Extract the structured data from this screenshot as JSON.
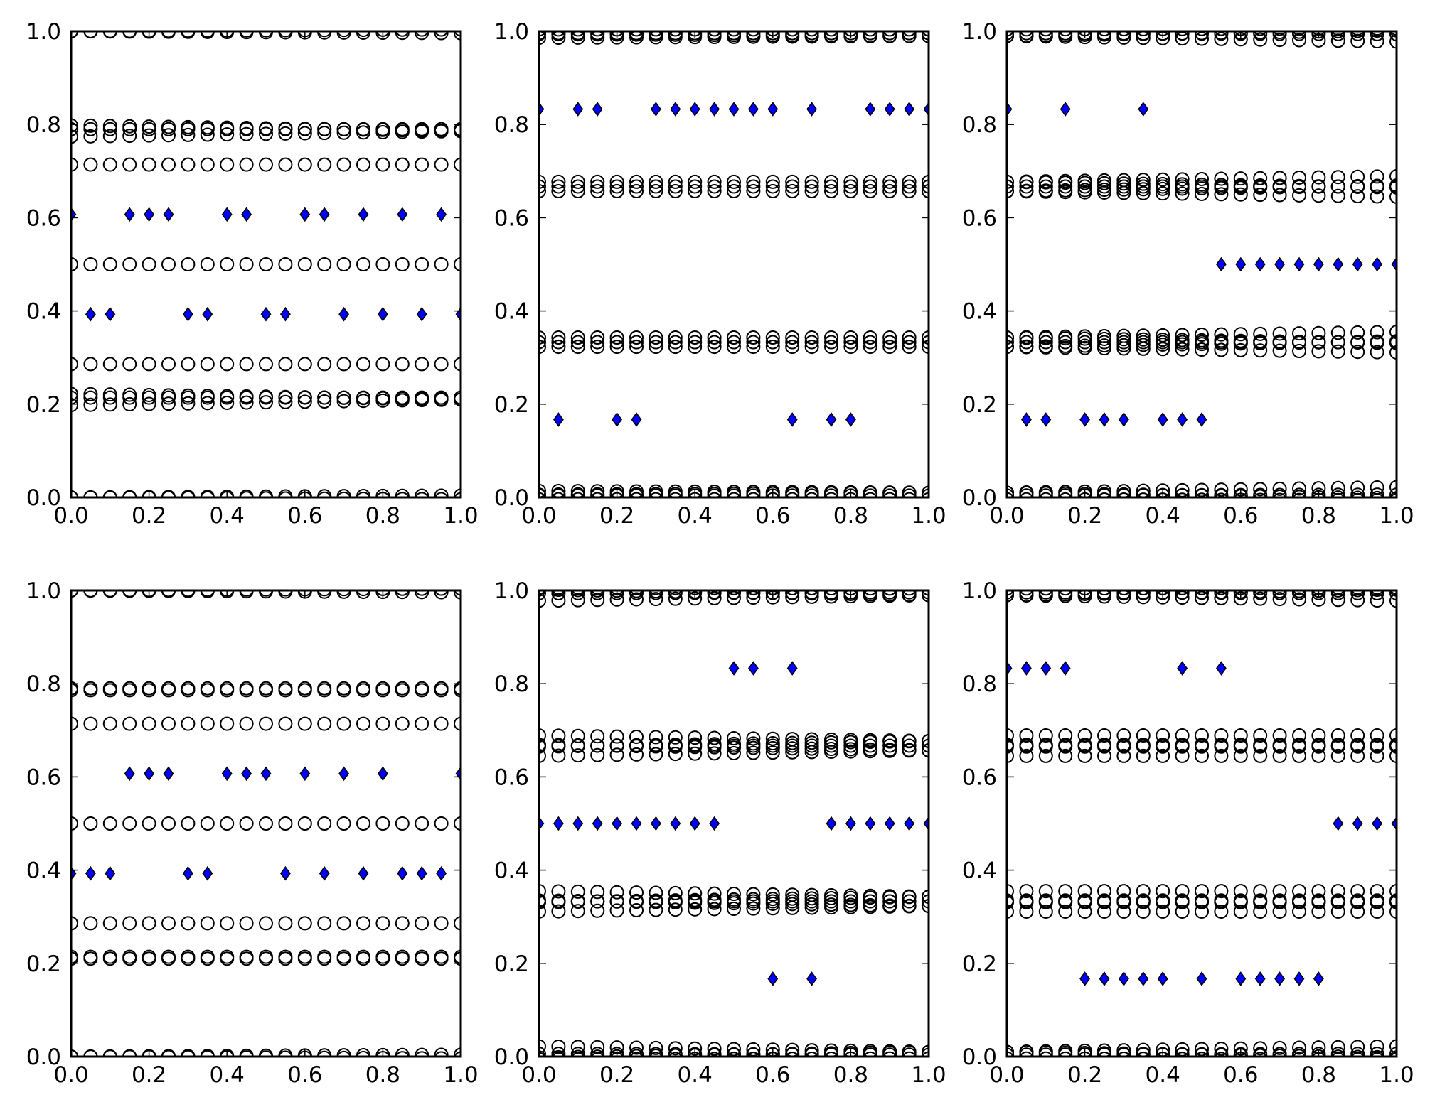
{
  "chart_data": [
    {
      "type": "scatter",
      "panel": 1,
      "xlim": [
        0,
        1
      ],
      "ylim": [
        0,
        1
      ],
      "xticks": [
        "0.0",
        "0.2",
        "0.4",
        "0.6",
        "0.8",
        "1.0"
      ],
      "yticks": [
        "0.0",
        "0.2",
        "0.4",
        "0.6",
        "0.8",
        "1.0"
      ],
      "series": [
        {
          "marker": "diamond",
          "color": "#0000ff",
          "points": [
            [
              0,
              0.607
            ],
            [
              0.05,
              0.393
            ],
            [
              0.1,
              0.393
            ],
            [
              0.15,
              0.607
            ],
            [
              0.2,
              0.607
            ],
            [
              0.25,
              0.607
            ],
            [
              0.3,
              0.393
            ],
            [
              0.35,
              0.393
            ],
            [
              0.4,
              0.607
            ],
            [
              0.45,
              0.607
            ],
            [
              0.5,
              0.393
            ],
            [
              0.55,
              0.393
            ],
            [
              0.6,
              0.607
            ],
            [
              0.65,
              0.607
            ],
            [
              0.7,
              0.393
            ],
            [
              0.75,
              0.607
            ],
            [
              0.8,
              0.393
            ],
            [
              0.85,
              0.607
            ],
            [
              0.9,
              0.393
            ],
            [
              0.95,
              0.607
            ],
            [
              1,
              0.393
            ]
          ]
        },
        {
          "marker": "open-circle",
          "color": "#000000",
          "rows": [
            {
              "y": 0.0,
              "spread_start": 0.0,
              "spread_end": 0.004
            },
            {
              "y": 0.21,
              "spread_start": 0.012,
              "spread_end": 0.0
            },
            {
              "y": 0.214,
              "spread_start": 0.0,
              "spread_end": 0.0
            },
            {
              "y": 0.286,
              "spread_start": 0.0,
              "spread_end": 0.0
            },
            {
              "y": 0.5,
              "spread_start": 0.0,
              "spread_end": 0.0
            },
            {
              "y": 0.714,
              "spread_start": 0.0,
              "spread_end": 0.0
            },
            {
              "y": 0.786,
              "spread_start": 0.012,
              "spread_end": 0.0
            },
            {
              "y": 0.79,
              "spread_start": 0.0,
              "spread_end": 0.0
            },
            {
              "y": 1.0,
              "spread_start": 0.0,
              "spread_end": 0.004
            }
          ]
        }
      ]
    },
    {
      "type": "scatter",
      "panel": 2,
      "xlim": [
        0,
        1
      ],
      "ylim": [
        0,
        1
      ],
      "xticks": [
        "0.0",
        "0.2",
        "0.4",
        "0.6",
        "0.8",
        "1.0"
      ],
      "yticks": [
        "0.0",
        "0.2",
        "0.4",
        "0.6",
        "0.8",
        "1.0"
      ],
      "series": [
        {
          "marker": "diamond",
          "color": "#0000ff",
          "points": [
            [
              0,
              0.833
            ],
            [
              0.05,
              0.167
            ],
            [
              0.1,
              0.833
            ],
            [
              0.15,
              0.833
            ],
            [
              0.2,
              0.167
            ],
            [
              0.25,
              0.167
            ],
            [
              0.3,
              0.833
            ],
            [
              0.35,
              0.833
            ],
            [
              0.4,
              0.833
            ],
            [
              0.45,
              0.833
            ],
            [
              0.5,
              0.833
            ],
            [
              0.55,
              0.833
            ],
            [
              0.6,
              0.833
            ],
            [
              0.65,
              0.167
            ],
            [
              0.7,
              0.833
            ],
            [
              0.75,
              0.167
            ],
            [
              0.8,
              0.167
            ],
            [
              0.85,
              0.833
            ],
            [
              0.9,
              0.833
            ],
            [
              0.95,
              0.833
            ],
            [
              1,
              0.833
            ]
          ]
        },
        {
          "marker": "open-circle",
          "color": "#000000",
          "rows": [
            {
              "y": 0.0,
              "spread_start": 0.004,
              "spread_end": 0.004
            },
            {
              "y": 0.01,
              "spread_start": 0.004,
              "spread_end": 0.0
            },
            {
              "y": 0.323,
              "spread_start": 0.0,
              "spread_end": 0.0
            },
            {
              "y": 0.333,
              "spread_start": 0.0,
              "spread_end": 0.0
            },
            {
              "y": 0.343,
              "spread_start": 0.0,
              "spread_end": 0.0
            },
            {
              "y": 0.657,
              "spread_start": 0.0,
              "spread_end": 0.0
            },
            {
              "y": 0.667,
              "spread_start": 0.0,
              "spread_end": 0.0
            },
            {
              "y": 0.677,
              "spread_start": 0.0,
              "spread_end": 0.0
            },
            {
              "y": 0.99,
              "spread_start": 0.004,
              "spread_end": 0.0
            },
            {
              "y": 1.0,
              "spread_start": 0.004,
              "spread_end": 0.004
            }
          ]
        }
      ]
    },
    {
      "type": "scatter",
      "panel": 3,
      "xlim": [
        0,
        1
      ],
      "ylim": [
        0,
        1
      ],
      "xticks": [
        "0.0",
        "0.2",
        "0.4",
        "0.6",
        "0.8",
        "1.0"
      ],
      "yticks": [
        "0.0",
        "0.2",
        "0.4",
        "0.6",
        "0.8",
        "1.0"
      ],
      "series": [
        {
          "marker": "diamond",
          "color": "#0000ff",
          "points": [
            [
              0,
              0.833
            ],
            [
              0.05,
              0.167
            ],
            [
              0.1,
              0.167
            ],
            [
              0.15,
              0.833
            ],
            [
              0.2,
              0.167
            ],
            [
              0.25,
              0.167
            ],
            [
              0.3,
              0.167
            ],
            [
              0.35,
              0.833
            ],
            [
              0.4,
              0.167
            ],
            [
              0.45,
              0.167
            ],
            [
              0.5,
              0.167
            ],
            [
              0.55,
              0.5
            ],
            [
              0.6,
              0.5
            ],
            [
              0.65,
              0.5
            ],
            [
              0.7,
              0.5
            ],
            [
              0.75,
              0.5
            ],
            [
              0.8,
              0.5
            ],
            [
              0.85,
              0.5
            ],
            [
              0.9,
              0.5
            ],
            [
              0.95,
              0.5
            ],
            [
              1,
              0.5
            ]
          ]
        },
        {
          "marker": "open-circle",
          "color": "#000000",
          "rows": [
            {
              "y": 0.0,
              "spread_start": 0.004,
              "spread_end": 0.006
            },
            {
              "y": 0.01,
              "spread_start": 0.0,
              "spread_end": 0.012
            },
            {
              "y": 0.323,
              "spread_start": 0.0,
              "spread_end": 0.012
            },
            {
              "y": 0.333,
              "spread_start": 0.0,
              "spread_end": 0.0
            },
            {
              "y": 0.343,
              "spread_start": 0.0,
              "spread_end": 0.012
            },
            {
              "y": 0.657,
              "spread_start": 0.0,
              "spread_end": 0.012
            },
            {
              "y": 0.667,
              "spread_start": 0.0,
              "spread_end": 0.0
            },
            {
              "y": 0.677,
              "spread_start": 0.0,
              "spread_end": 0.012
            },
            {
              "y": 0.99,
              "spread_start": 0.0,
              "spread_end": 0.012
            },
            {
              "y": 1.0,
              "spread_start": 0.004,
              "spread_end": 0.006
            }
          ]
        }
      ]
    },
    {
      "type": "scatter",
      "panel": 4,
      "xlim": [
        0,
        1
      ],
      "ylim": [
        0,
        1
      ],
      "xticks": [
        "0.0",
        "0.2",
        "0.4",
        "0.6",
        "0.8",
        "1.0"
      ],
      "yticks": [
        "0.0",
        "0.2",
        "0.4",
        "0.6",
        "0.8",
        "1.0"
      ],
      "series": [
        {
          "marker": "diamond",
          "color": "#0000ff",
          "points": [
            [
              0,
              0.393
            ],
            [
              0.05,
              0.393
            ],
            [
              0.1,
              0.393
            ],
            [
              0.15,
              0.607
            ],
            [
              0.2,
              0.607
            ],
            [
              0.25,
              0.607
            ],
            [
              0.3,
              0.393
            ],
            [
              0.35,
              0.393
            ],
            [
              0.4,
              0.607
            ],
            [
              0.45,
              0.607
            ],
            [
              0.5,
              0.607
            ],
            [
              0.55,
              0.393
            ],
            [
              0.6,
              0.607
            ],
            [
              0.65,
              0.393
            ],
            [
              0.7,
              0.607
            ],
            [
              0.75,
              0.393
            ],
            [
              0.8,
              0.607
            ],
            [
              0.85,
              0.393
            ],
            [
              0.9,
              0.393
            ],
            [
              0.95,
              0.393
            ],
            [
              1,
              0.607
            ]
          ]
        },
        {
          "marker": "open-circle",
          "color": "#000000",
          "rows": [
            {
              "y": 0.0,
              "spread_start": 0.0,
              "spread_end": 0.004
            },
            {
              "y": 0.21,
              "spread_start": 0.0,
              "spread_end": 0.0
            },
            {
              "y": 0.214,
              "spread_start": 0.0,
              "spread_end": 0.0
            },
            {
              "y": 0.286,
              "spread_start": 0.0,
              "spread_end": 0.0
            },
            {
              "y": 0.5,
              "spread_start": 0.0,
              "spread_end": 0.0
            },
            {
              "y": 0.714,
              "spread_start": 0.0,
              "spread_end": 0.0
            },
            {
              "y": 0.786,
              "spread_start": 0.0,
              "spread_end": 0.0
            },
            {
              "y": 0.79,
              "spread_start": 0.0,
              "spread_end": 0.0
            },
            {
              "y": 1.0,
              "spread_start": 0.0,
              "spread_end": 0.004
            }
          ]
        }
      ]
    },
    {
      "type": "scatter",
      "panel": 5,
      "xlim": [
        0,
        1
      ],
      "ylim": [
        0,
        1
      ],
      "xticks": [
        "0.0",
        "0.2",
        "0.4",
        "0.6",
        "0.8",
        "1.0"
      ],
      "yticks": [
        "0.0",
        "0.2",
        "0.4",
        "0.6",
        "0.8",
        "1.0"
      ],
      "series": [
        {
          "marker": "diamond",
          "color": "#0000ff",
          "points": [
            [
              0,
              0.5
            ],
            [
              0.05,
              0.5
            ],
            [
              0.1,
              0.5
            ],
            [
              0.15,
              0.5
            ],
            [
              0.2,
              0.5
            ],
            [
              0.25,
              0.5
            ],
            [
              0.3,
              0.5
            ],
            [
              0.35,
              0.5
            ],
            [
              0.4,
              0.5
            ],
            [
              0.45,
              0.5
            ],
            [
              0.5,
              0.833
            ],
            [
              0.55,
              0.833
            ],
            [
              0.6,
              0.167
            ],
            [
              0.65,
              0.833
            ],
            [
              0.7,
              0.167
            ],
            [
              0.75,
              0.5
            ],
            [
              0.8,
              0.5
            ],
            [
              0.85,
              0.5
            ],
            [
              0.9,
              0.5
            ],
            [
              0.95,
              0.5
            ],
            [
              1,
              0.5
            ]
          ]
        },
        {
          "marker": "open-circle",
          "color": "#000000",
          "rows": [
            {
              "y": 0.0,
              "spread_start": 0.006,
              "spread_end": 0.004
            },
            {
              "y": 0.01,
              "spread_start": 0.012,
              "spread_end": 0.0
            },
            {
              "y": 0.323,
              "spread_start": 0.012,
              "spread_end": 0.0
            },
            {
              "y": 0.333,
              "spread_start": 0.0,
              "spread_end": 0.0
            },
            {
              "y": 0.343,
              "spread_start": 0.012,
              "spread_end": 0.0
            },
            {
              "y": 0.657,
              "spread_start": 0.012,
              "spread_end": 0.0
            },
            {
              "y": 0.667,
              "spread_start": 0.0,
              "spread_end": 0.0
            },
            {
              "y": 0.677,
              "spread_start": 0.012,
              "spread_end": 0.0
            },
            {
              "y": 0.99,
              "spread_start": 0.012,
              "spread_end": 0.0
            },
            {
              "y": 1.0,
              "spread_start": 0.006,
              "spread_end": 0.004
            }
          ]
        }
      ]
    },
    {
      "type": "scatter",
      "panel": 6,
      "xlim": [
        0,
        1
      ],
      "ylim": [
        0,
        1
      ],
      "xticks": [
        "0.0",
        "0.2",
        "0.4",
        "0.6",
        "0.8",
        "1.0"
      ],
      "yticks": [
        "0.0",
        "0.2",
        "0.4",
        "0.6",
        "0.8",
        "1.0"
      ],
      "series": [
        {
          "marker": "diamond",
          "color": "#0000ff",
          "points": [
            [
              0,
              0.833
            ],
            [
              0.05,
              0.833
            ],
            [
              0.1,
              0.833
            ],
            [
              0.15,
              0.833
            ],
            [
              0.2,
              0.167
            ],
            [
              0.25,
              0.167
            ],
            [
              0.3,
              0.167
            ],
            [
              0.35,
              0.167
            ],
            [
              0.4,
              0.167
            ],
            [
              0.45,
              0.833
            ],
            [
              0.5,
              0.167
            ],
            [
              0.55,
              0.833
            ],
            [
              0.6,
              0.167
            ],
            [
              0.65,
              0.167
            ],
            [
              0.7,
              0.167
            ],
            [
              0.75,
              0.167
            ],
            [
              0.8,
              0.167
            ],
            [
              0.85,
              0.5
            ],
            [
              0.9,
              0.5
            ],
            [
              0.95,
              0.5
            ],
            [
              1,
              0.5
            ]
          ]
        },
        {
          "marker": "open-circle",
          "color": "#000000",
          "rows": [
            {
              "y": 0.0,
              "spread_start": 0.004,
              "spread_end": 0.006
            },
            {
              "y": 0.01,
              "spread_start": 0.0,
              "spread_end": 0.012
            },
            {
              "y": 0.323,
              "spread_start": 0.012,
              "spread_end": 0.012
            },
            {
              "y": 0.333,
              "spread_start": 0.0,
              "spread_end": 0.0
            },
            {
              "y": 0.343,
              "spread_start": 0.012,
              "spread_end": 0.012
            },
            {
              "y": 0.657,
              "spread_start": 0.012,
              "spread_end": 0.012
            },
            {
              "y": 0.667,
              "spread_start": 0.0,
              "spread_end": 0.0
            },
            {
              "y": 0.677,
              "spread_start": 0.012,
              "spread_end": 0.012
            },
            {
              "y": 0.99,
              "spread_start": 0.0,
              "spread_end": 0.012
            },
            {
              "y": 1.0,
              "spread_start": 0.004,
              "spread_end": 0.006
            }
          ]
        }
      ]
    }
  ]
}
